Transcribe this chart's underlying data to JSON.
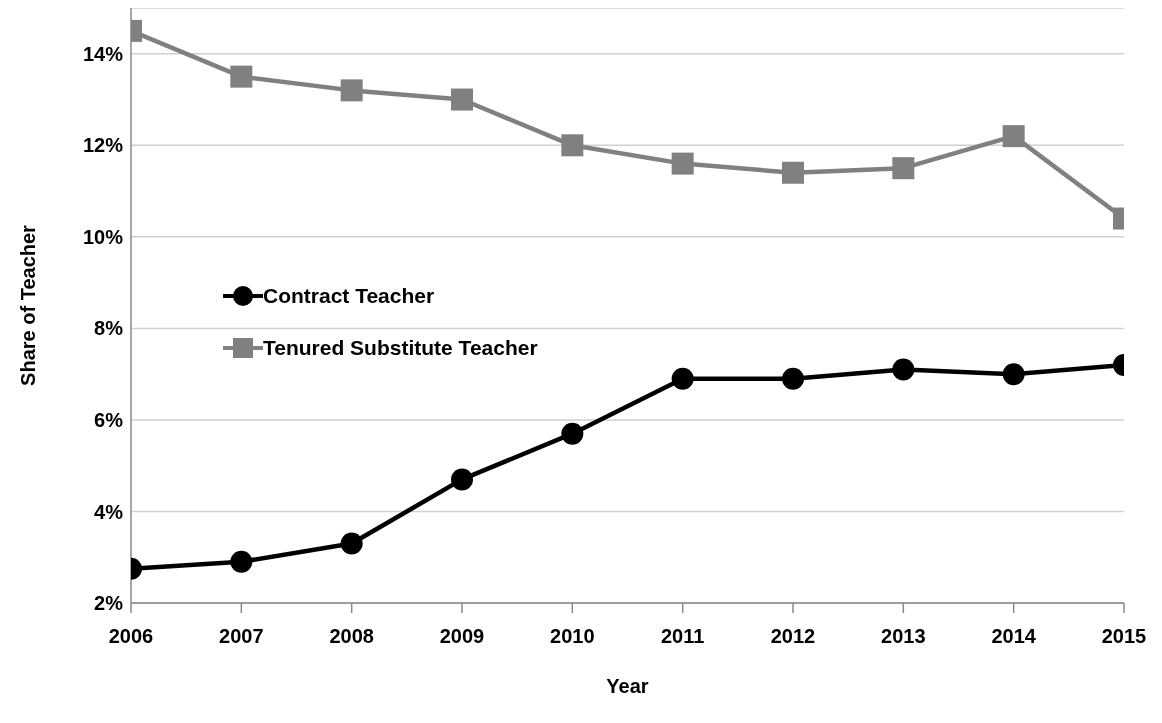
{
  "chart_data": {
    "type": "line",
    "xlabel": "Year",
    "ylabel": "Share of Teacher",
    "categories": [
      "2006",
      "2007",
      "2008",
      "2009",
      "2010",
      "2011",
      "2012",
      "2013",
      "2014",
      "2015"
    ],
    "series": [
      {
        "name": "Contract Teacher",
        "color": "#000000",
        "marker": "circle",
        "values": [
          2.75,
          2.9,
          3.3,
          4.7,
          5.7,
          6.9,
          6.9,
          7.1,
          7.0,
          7.2
        ]
      },
      {
        "name": "Tenured Substitute Teacher",
        "color": "#808080",
        "marker": "square",
        "values": [
          14.5,
          13.5,
          13.2,
          13.0,
          12.0,
          11.6,
          11.4,
          11.5,
          12.2,
          10.4
        ]
      }
    ],
    "ylim": [
      2,
      15
    ],
    "yticks": [
      {
        "value": 2,
        "label": "2%"
      },
      {
        "value": 4,
        "label": "4%"
      },
      {
        "value": 6,
        "label": "6%"
      },
      {
        "value": 8,
        "label": "8%"
      },
      {
        "value": 10,
        "label": "10%"
      },
      {
        "value": 12,
        "label": "12%"
      },
      {
        "value": 14,
        "label": "14%"
      }
    ],
    "grid": "y",
    "legend": "left",
    "line_style": "solid"
  }
}
